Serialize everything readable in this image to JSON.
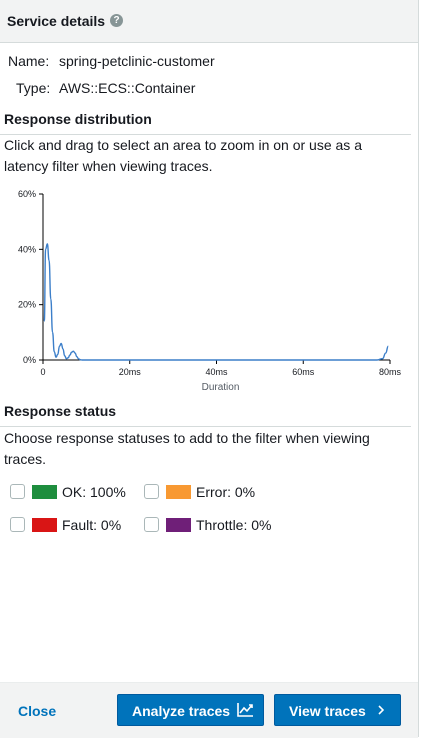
{
  "panel": {
    "title": "Service details",
    "info_icon": "?",
    "info_icon_name": "info-icon"
  },
  "details": [
    {
      "key": "Name:",
      "value": "spring-petclinic-customer"
    },
    {
      "key": "Type:",
      "value": "AWS::ECS::Container"
    }
  ],
  "response_distribution": {
    "title": "Response distribution",
    "help": "Click and drag to select an area to zoom in on or use as a latency filter when viewing traces."
  },
  "chart_data": {
    "type": "line",
    "xlabel": "Duration",
    "ylabel": "",
    "x_ticks": [
      {
        "value": 0,
        "label": "0"
      },
      {
        "value": 20,
        "label": "20ms"
      },
      {
        "value": 40,
        "label": "40ms"
      },
      {
        "value": 60,
        "label": "60ms"
      },
      {
        "value": 80,
        "label": "80ms"
      }
    ],
    "y_ticks": [
      {
        "value": 0,
        "label": "0%"
      },
      {
        "value": 20,
        "label": "20%"
      },
      {
        "value": 40,
        "label": "40%"
      },
      {
        "value": 60,
        "label": "60%"
      }
    ],
    "xlim": [
      0,
      80
    ],
    "ylim": [
      0,
      60
    ],
    "line_color": "#3b7ec9",
    "series": [
      {
        "x": [
          0.3,
          0.6,
          1.0,
          1.4,
          1.8,
          2.2,
          2.6,
          3.0,
          3.4,
          3.8,
          4.2,
          4.6,
          5.0,
          5.4,
          5.8,
          6.2,
          6.6,
          7.0,
          7.4,
          7.8,
          8.2,
          8.6,
          9.0,
          10,
          20,
          40,
          60,
          77,
          78.3,
          79,
          79.6
        ],
        "y": [
          14,
          40,
          42,
          36,
          22,
          10,
          3,
          1,
          2,
          5,
          6,
          4,
          1.5,
          0.5,
          0.8,
          1.8,
          2.8,
          3.2,
          2.5,
          1.2,
          0.4,
          0.1,
          0,
          0,
          0,
          0,
          0,
          0,
          0.5,
          2.5,
          5
        ]
      }
    ]
  },
  "response_status": {
    "title": "Response status",
    "help": "Choose response statuses to add to the filter when viewing traces.",
    "items": [
      {
        "label": "OK: 100%",
        "color": "#1e8e3e"
      },
      {
        "label": "Error: 0%",
        "color": "#f89932"
      },
      {
        "label": "Fault: 0%",
        "color": "#d91515"
      },
      {
        "label": "Throttle: 0%",
        "color": "#6f1f78"
      }
    ]
  },
  "footer": {
    "close_label": "Close",
    "analyze_label": "Analyze traces",
    "analyze_icon": "line-chart-icon",
    "view_label": "View traces",
    "view_icon": "chevron-right-icon"
  }
}
